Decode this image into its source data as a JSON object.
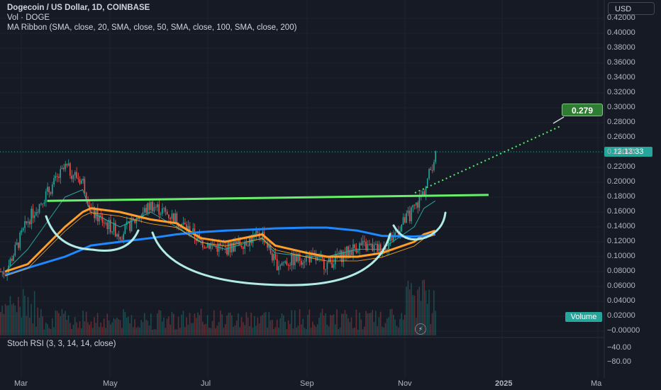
{
  "legend": {
    "title": "Dogecoin / US Dollar, 1D, COINBASE",
    "volume": "Vol · DOGE",
    "ma_ribbon": "MA Ribbon (SMA, close, 20, SMA, close, 50, SMA, close, 100, SMA, close, 200)"
  },
  "currency_button": "USD",
  "price_tag": "12:13:33",
  "target_label": "0.279",
  "volume_tag": "Volume",
  "bolt_icon": "⚡",
  "stoch_label": "Stoch RSI (3, 3, 14, 14, close)",
  "colors": {
    "up": "#26a69a",
    "down": "#ef5350",
    "background": "#161a25",
    "resistance_line": "#69f06a",
    "target_dotted": "#5bf06a",
    "cup_curves": "#b2ebe6",
    "sma20": "#26a69a",
    "sma50": "#ff9f2a",
    "sma100": "#ffa726",
    "sma200": "#1e88ff"
  },
  "y_ticks": [
    "0.42000",
    "0.40000",
    "0.38000",
    "0.36000",
    "0.34000",
    "0.32000",
    "0.30000",
    "0.28000",
    "0.26000",
    "0.24000",
    "0.22000",
    "0.20000",
    "0.18000",
    "0.16000",
    "0.14000",
    "0.12000",
    "0.10000",
    "0.08000",
    "0.06000",
    "0.04000",
    "0.02000",
    "−0.00000"
  ],
  "stoch_ticks": [
    "−40.00",
    "−80.00"
  ],
  "x_ticks": [
    {
      "label": "Mar",
      "bold": false
    },
    {
      "label": "May",
      "bold": false
    },
    {
      "label": "Jul",
      "bold": false
    },
    {
      "label": "Sep",
      "bold": false
    },
    {
      "label": "Nov",
      "bold": false
    },
    {
      "label": "2025",
      "bold": true
    },
    {
      "label": "Ma",
      "bold": false
    }
  ],
  "chart_data": {
    "type": "line",
    "title": "Dogecoin / US Dollar, 1D, COINBASE",
    "ylim": [
      0,
      0.43
    ],
    "grid": true,
    "price_path": {
      "name": "DOGE close",
      "x": [
        "2024-02-20",
        "2024-03-05",
        "2024-03-28",
        "2024-04-08",
        "2024-04-13",
        "2024-05-01",
        "2024-05-20",
        "2024-06-05",
        "2024-06-20",
        "2024-07-05",
        "2024-07-28",
        "2024-08-05",
        "2024-08-25",
        "2024-09-06",
        "2024-09-25",
        "2024-10-10",
        "2024-10-30",
        "2024-11-05",
        "2024-11-12"
      ],
      "values": [
        0.08,
        0.15,
        0.22,
        0.2,
        0.16,
        0.13,
        0.17,
        0.15,
        0.12,
        0.11,
        0.13,
        0.09,
        0.1,
        0.09,
        0.115,
        0.11,
        0.165,
        0.19,
        0.24
      ]
    },
    "series": [
      {
        "name": "SMA 20",
        "values": [
          0.08,
          0.11,
          0.18,
          0.19,
          0.16,
          0.14,
          0.16,
          0.14,
          0.12,
          0.11,
          0.125,
          0.105,
          0.1,
          0.1,
          0.11,
          0.11,
          0.14,
          0.165,
          0.175
        ]
      },
      {
        "name": "SMA 50",
        "values": [
          0.08,
          0.09,
          0.14,
          0.16,
          0.165,
          0.16,
          0.15,
          0.145,
          0.125,
          0.12,
          0.13,
          0.115,
          0.105,
          0.1,
          0.1,
          0.105,
          0.12,
          0.13,
          0.135
        ]
      },
      {
        "name": "SMA 200",
        "values": [
          0.075,
          0.085,
          0.1,
          0.11,
          0.115,
          0.12,
          0.125,
          0.13,
          0.133,
          0.135,
          0.137,
          0.138,
          0.139,
          0.139,
          0.135,
          0.128,
          0.127,
          0.128,
          0.13
        ]
      }
    ],
    "resistance_line": {
      "start": [
        "2024-03-17",
        0.175
      ],
      "end": [
        "2024-12-15",
        0.183
      ]
    },
    "target": {
      "value": 0.279
    }
  }
}
